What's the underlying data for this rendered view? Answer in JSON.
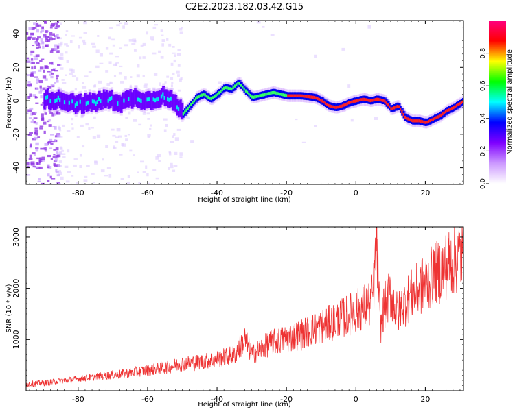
{
  "title": "C2E2.2023.182.03.42.G15",
  "colors": {
    "snr_line": "#ee3333",
    "colormap": [
      "#ffffff",
      "#cc99ff",
      "#7f00ff",
      "#0000ff",
      "#00ffff",
      "#00ff00",
      "#ffff00",
      "#ff0000",
      "#ff0080"
    ]
  },
  "chart_data": [
    {
      "type": "heatmap",
      "xlabel": "Height of straight line (km)",
      "ylabel": "Frequency (Hz)",
      "xlim": [
        -95,
        31
      ],
      "ylim": [
        -50,
        48
      ],
      "xticks": [
        -80,
        -60,
        -40,
        -20,
        0,
        20
      ],
      "yticks": [
        -40,
        -20,
        0,
        20,
        40
      ],
      "colorbar": {
        "label": "Normalized spectral amplitude",
        "range": [
          0,
          1
        ],
        "ticks": [
          0.0,
          0.2,
          0.4,
          0.6,
          0.8
        ]
      },
      "ridge": {
        "x": [
          -88,
          -84,
          -80,
          -76,
          -72,
          -68,
          -64,
          -60,
          -56,
          -52,
          -50,
          -48,
          -46,
          -44,
          -42,
          -40,
          -38,
          -36,
          -34,
          -32,
          -30,
          -28,
          -26,
          -24,
          -22,
          -20,
          -16,
          -12,
          -10,
          -8,
          -6,
          -4,
          -2,
          0,
          2,
          4,
          6,
          8,
          10,
          12,
          14,
          16,
          18,
          20,
          22,
          24,
          26,
          28,
          31
        ],
        "freq": [
          1,
          0,
          -2,
          -1,
          1,
          -1,
          2,
          0,
          3,
          -2,
          -8,
          -3,
          2,
          4,
          1,
          4,
          8,
          7,
          11,
          6,
          2,
          3,
          4,
          5,
          4,
          3,
          3,
          2,
          0,
          -3,
          -4,
          -3,
          -1,
          0,
          1,
          0,
          1,
          0,
          -5,
          -3,
          -10,
          -12,
          -12,
          -13,
          -11,
          -9,
          -6,
          -4,
          0
        ]
      }
    },
    {
      "type": "line",
      "xlabel": "Height of straight line (km)",
      "ylabel": "SNR (10 * v/v)",
      "xlim": [
        -95,
        31
      ],
      "ylim": [
        0,
        3200
      ],
      "xticks": [
        -80,
        -60,
        -40,
        -20,
        0,
        20
      ],
      "yticks": [
        1000,
        2000,
        3000
      ],
      "series": [
        {
          "x": [
            -95,
            -90,
            -85,
            -80,
            -75,
            -70,
            -65,
            -60,
            -55,
            -50,
            -45,
            -40,
            -35,
            -32,
            -30,
            -28,
            -25,
            -20,
            -15,
            -10,
            -5,
            0,
            4,
            5,
            6,
            7,
            8,
            10,
            12,
            15,
            20,
            25,
            31
          ],
          "values": [
            130,
            150,
            190,
            230,
            270,
            310,
            350,
            400,
            450,
            530,
            560,
            620,
            700,
            1000,
            720,
            790,
            920,
            1020,
            1120,
            1250,
            1380,
            1560,
            1700,
            1900,
            2950,
            1200,
            1600,
            1900,
            1500,
            1800,
            2100,
            2400,
            2700
          ]
        }
      ]
    }
  ]
}
